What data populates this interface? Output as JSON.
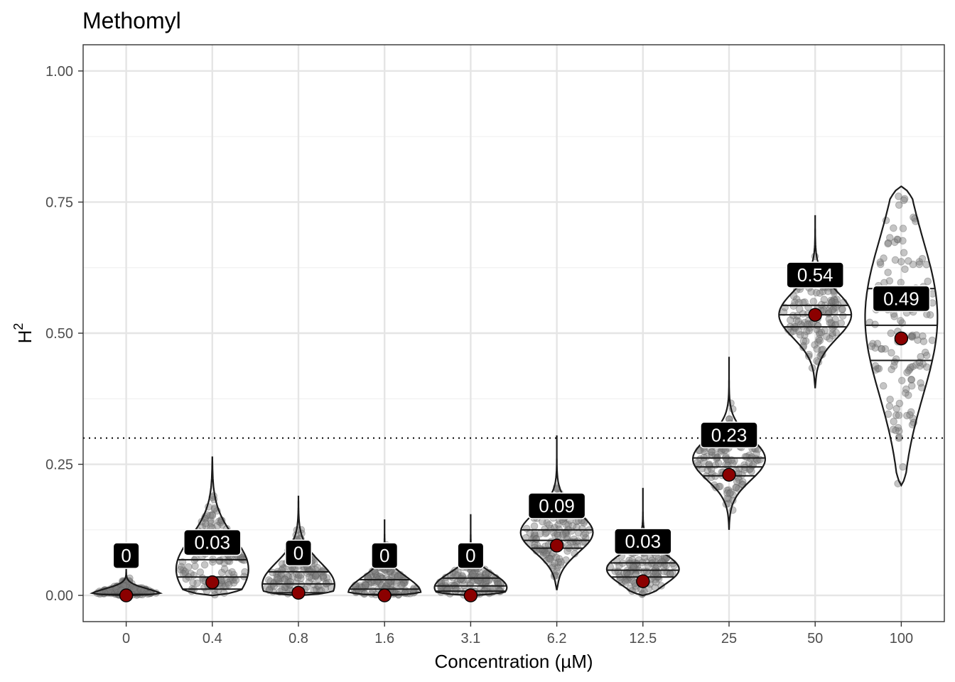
{
  "chart_data": {
    "type": "violin",
    "title": "Methomyl",
    "xlabel": "Concentration (µM)",
    "ylabel": "H",
    "ylabel_superscript": "2",
    "ylim": [
      -0.05,
      1.05
    ],
    "y_ticks": [
      "0.00",
      "0.25",
      "0.50",
      "0.75",
      "1.00"
    ],
    "y_tick_values": [
      0,
      0.25,
      0.5,
      0.75,
      1.0
    ],
    "grid": true,
    "reference_line": {
      "y": 0.3,
      "style": "dotted"
    },
    "categories": [
      "0",
      "0.4",
      "0.8",
      "1.6",
      "3.1",
      "6.2",
      "12.5",
      "25",
      "50",
      "100"
    ],
    "groups": [
      {
        "label": "0",
        "mean": 0.0,
        "mean_label": "0",
        "min": 0.0,
        "max": 0.1,
        "q1": 0.0,
        "median": 0.0,
        "q3": 0.002,
        "mode": 0.0
      },
      {
        "label": "0.4",
        "mean": 0.025,
        "mean_label": "0.03",
        "min": 0.0,
        "max": 0.265,
        "q1": 0.012,
        "median": 0.035,
        "q3": 0.068,
        "mode": 0.05
      },
      {
        "label": "0.8",
        "mean": 0.005,
        "mean_label": "0",
        "min": 0.0,
        "max": 0.19,
        "q1": 0.005,
        "median": 0.022,
        "q3": 0.045,
        "mode": 0.02
      },
      {
        "label": "1.6",
        "mean": 0.0,
        "mean_label": "0",
        "min": 0.0,
        "max": 0.145,
        "q1": 0.002,
        "median": 0.012,
        "q3": 0.03,
        "mode": 0.005
      },
      {
        "label": "3.1",
        "mean": 0.0,
        "mean_label": "0",
        "min": 0.0,
        "max": 0.155,
        "q1": 0.008,
        "median": 0.018,
        "q3": 0.033,
        "mode": 0.015
      },
      {
        "label": "6.2",
        "mean": 0.095,
        "mean_label": "0.09",
        "min": 0.01,
        "max": 0.305,
        "q1": 0.09,
        "median": 0.105,
        "q3": 0.125,
        "mode": 0.12
      },
      {
        "label": "12.5",
        "mean": 0.027,
        "mean_label": "0.03",
        "min": 0.0,
        "max": 0.205,
        "q1": 0.035,
        "median": 0.048,
        "q3": 0.062,
        "mode": 0.05
      },
      {
        "label": "25",
        "mean": 0.23,
        "mean_label": "0.23",
        "min": 0.125,
        "max": 0.455,
        "q1": 0.228,
        "median": 0.245,
        "q3": 0.262,
        "mode": 0.26
      },
      {
        "label": "50",
        "mean": 0.535,
        "mean_label": "0.54",
        "min": 0.395,
        "max": 0.725,
        "q1": 0.512,
        "median": 0.535,
        "q3": 0.553,
        "mode": 0.535
      },
      {
        "label": "100",
        "mean": 0.49,
        "mean_label": "0.49",
        "min": 0.21,
        "max": 0.78,
        "q1": 0.448,
        "median": 0.515,
        "q3": 0.585,
        "mode": 0.53
      }
    ],
    "colors": {
      "mean_point": "#8b0000",
      "violin_stroke": "#1a1a1a",
      "points": "#7f7f7f",
      "label_bg": "#000000",
      "grid_major": "#e5e5e5",
      "grid_minor": "#f0f0f0"
    }
  }
}
